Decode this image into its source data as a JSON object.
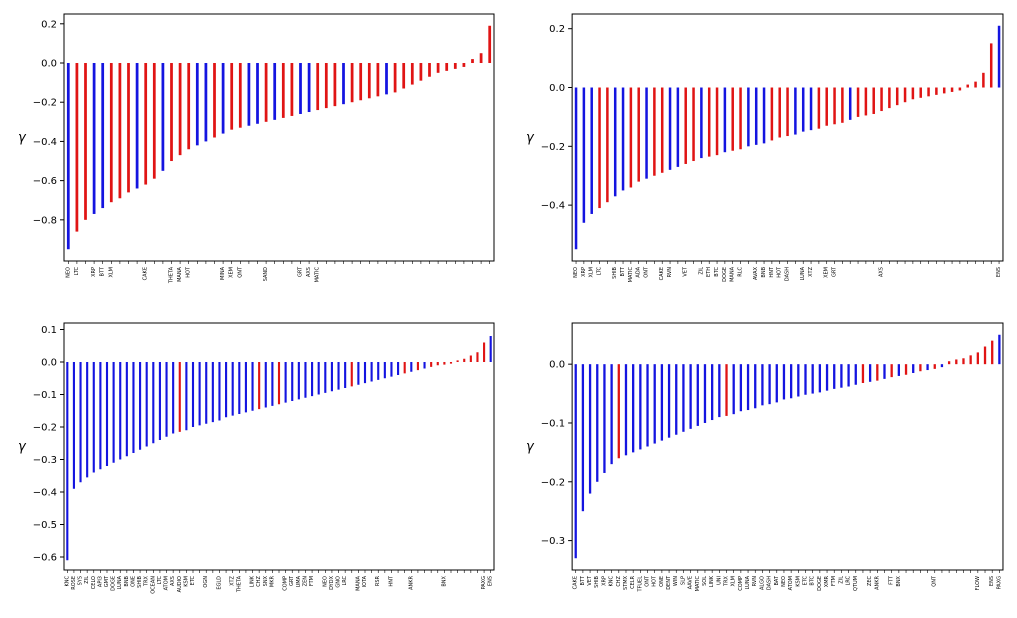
{
  "figure": {
    "background": "#ffffff"
  },
  "colors": {
    "blue": "#1414e0",
    "red": "#e01414",
    "axis": "#000000",
    "text": "#000000"
  },
  "ylabel": "γ",
  "chart_data": [
    {
      "type": "bar",
      "position": "top-left",
      "title": "",
      "xlabel": "",
      "ylabel": "γ",
      "ylim": [
        -1.01,
        0.25
      ],
      "yticks": [
        0.2,
        0.0,
        -0.2,
        -0.4,
        -0.6,
        -0.8
      ],
      "grid": false,
      "legend": false,
      "labels": [
        "NEO",
        "LTC",
        "",
        "XRP",
        "BTT",
        "XLM",
        "",
        "",
        "",
        "CAKE",
        "",
        "",
        "THETA",
        "MANA",
        "HOT",
        "",
        "",
        "",
        "MINA",
        "XEM",
        "QNT",
        "",
        "",
        "SAND",
        "",
        "",
        "",
        "GRT",
        "AXS",
        "MATIC",
        "",
        "",
        "",
        "",
        "",
        "",
        "",
        "",
        "",
        "",
        "",
        "",
        "",
        "",
        "",
        "",
        "",
        "",
        "",
        ""
      ],
      "values": [
        -0.95,
        -0.86,
        -0.8,
        -0.77,
        -0.74,
        -0.71,
        -0.69,
        -0.66,
        -0.64,
        -0.62,
        -0.59,
        -0.55,
        -0.5,
        -0.47,
        -0.44,
        -0.42,
        -0.4,
        -0.38,
        -0.36,
        -0.34,
        -0.33,
        -0.32,
        -0.31,
        -0.3,
        -0.29,
        -0.28,
        -0.27,
        -0.26,
        -0.25,
        -0.24,
        -0.23,
        -0.22,
        -0.21,
        -0.2,
        -0.19,
        -0.18,
        -0.17,
        -0.16,
        -0.15,
        -0.13,
        -0.11,
        -0.09,
        -0.07,
        -0.05,
        -0.04,
        -0.03,
        -0.02,
        0.02,
        0.05,
        0.19
      ],
      "colors": [
        "b",
        "r",
        "r",
        "b",
        "b",
        "r",
        "r",
        "r",
        "b",
        "r",
        "r",
        "b",
        "r",
        "r",
        "r",
        "b",
        "b",
        "r",
        "b",
        "r",
        "r",
        "b",
        "b",
        "r",
        "b",
        "r",
        "r",
        "b",
        "b",
        "r",
        "r",
        "r",
        "b",
        "r",
        "r",
        "r",
        "r",
        "b",
        "r",
        "r",
        "r",
        "r",
        "r",
        "r",
        "r",
        "r",
        "r",
        "r",
        "r",
        "r"
      ]
    },
    {
      "type": "bar",
      "position": "top-right",
      "title": "",
      "xlabel": "",
      "ylabel": "γ",
      "ylim": [
        -0.59,
        0.25
      ],
      "yticks": [
        0.2,
        0.0,
        -0.2,
        -0.4
      ],
      "grid": false,
      "legend": false,
      "labels": [
        "NEO",
        "XRP",
        "XLM",
        "LTC",
        "",
        "SHIB",
        "BTT",
        "MATIC",
        "ADA",
        "ONT",
        "",
        "CAKE",
        "RVN",
        "",
        "VET",
        "",
        "ZIL",
        "ETH",
        "BTC",
        "DOGE",
        "MANA",
        "RLC",
        "",
        "AVAX",
        "BNB",
        "HNT",
        "HOT",
        "DASH",
        "",
        "LUNA",
        "XTZ",
        "",
        "XEM",
        "GRT",
        "",
        "",
        "",
        "",
        "",
        "AXS",
        "",
        "",
        "",
        "",
        "",
        "",
        "",
        "",
        "",
        "",
        "",
        "",
        "",
        "",
        "ENS"
      ],
      "values": [
        -0.55,
        -0.46,
        -0.43,
        -0.41,
        -0.39,
        -0.37,
        -0.35,
        -0.34,
        -0.32,
        -0.31,
        -0.3,
        -0.29,
        -0.28,
        -0.27,
        -0.26,
        -0.25,
        -0.24,
        -0.235,
        -0.23,
        -0.22,
        -0.215,
        -0.21,
        -0.2,
        -0.195,
        -0.19,
        -0.18,
        -0.17,
        -0.165,
        -0.16,
        -0.15,
        -0.145,
        -0.14,
        -0.13,
        -0.125,
        -0.12,
        -0.11,
        -0.1,
        -0.095,
        -0.09,
        -0.08,
        -0.07,
        -0.06,
        -0.05,
        -0.04,
        -0.035,
        -0.03,
        -0.025,
        -0.02,
        -0.015,
        -0.01,
        0.01,
        0.02,
        0.05,
        0.15,
        0.21
      ],
      "colors": [
        "b",
        "b",
        "b",
        "r",
        "r",
        "b",
        "b",
        "r",
        "r",
        "b",
        "r",
        "r",
        "b",
        "b",
        "r",
        "r",
        "b",
        "r",
        "r",
        "b",
        "r",
        "r",
        "b",
        "b",
        "b",
        "r",
        "r",
        "r",
        "b",
        "b",
        "b",
        "r",
        "r",
        "r",
        "r",
        "b",
        "r",
        "r",
        "r",
        "r",
        "r",
        "r",
        "r",
        "r",
        "r",
        "r",
        "r",
        "r",
        "r",
        "r",
        "r",
        "r",
        "r",
        "r",
        "b"
      ]
    },
    {
      "type": "bar",
      "position": "bottom-left",
      "title": "",
      "xlabel": "",
      "ylabel": "γ",
      "ylim": [
        -0.64,
        0.12
      ],
      "yticks": [
        0.1,
        0.0,
        -0.1,
        -0.2,
        -0.3,
        -0.4,
        -0.5,
        -0.6
      ],
      "grid": false,
      "legend": false,
      "labels": [
        "KNC",
        "ROSE",
        "SYS",
        "ZIL",
        "CELO",
        "API3",
        "GMT",
        "DOGE",
        "LUNA",
        "BNB",
        "ONE",
        "SHIB",
        "TRX",
        "OCEAN",
        "LTC",
        "ATOM",
        "AXS",
        "AUDIO",
        "KSM",
        "ETC",
        "",
        "OGN",
        "",
        "EGLD",
        "",
        "XTZ",
        "THETA",
        "",
        "LINK",
        "CHZ",
        "SNX",
        "MKR",
        "",
        "COMP",
        "GRT",
        "UMA",
        "ZEN",
        "FTM",
        "",
        "NEO",
        "DYDX",
        "GNO",
        "LRC",
        "",
        "MANA",
        "IOTA",
        "",
        "RSR",
        "",
        "HNT",
        "",
        "",
        "ANKR",
        "",
        "",
        "",
        "",
        "BNX",
        "",
        "",
        "",
        "",
        "",
        "PAXG",
        "ENS"
      ],
      "values": [
        -0.61,
        -0.39,
        -0.37,
        -0.355,
        -0.34,
        -0.33,
        -0.32,
        -0.31,
        -0.3,
        -0.29,
        -0.28,
        -0.27,
        -0.26,
        -0.25,
        -0.24,
        -0.23,
        -0.22,
        -0.215,
        -0.21,
        -0.2,
        -0.195,
        -0.19,
        -0.185,
        -0.18,
        -0.17,
        -0.165,
        -0.16,
        -0.155,
        -0.15,
        -0.145,
        -0.14,
        -0.135,
        -0.13,
        -0.125,
        -0.12,
        -0.115,
        -0.11,
        -0.105,
        -0.1,
        -0.095,
        -0.09,
        -0.085,
        -0.08,
        -0.075,
        -0.07,
        -0.065,
        -0.06,
        -0.055,
        -0.05,
        -0.045,
        -0.04,
        -0.035,
        -0.03,
        -0.025,
        -0.02,
        -0.015,
        -0.01,
        -0.008,
        -0.005,
        0.005,
        0.01,
        0.02,
        0.03,
        0.06,
        0.08
      ],
      "colors": [
        "b",
        "b",
        "b",
        "b",
        "b",
        "b",
        "b",
        "b",
        "b",
        "b",
        "b",
        "b",
        "b",
        "b",
        "b",
        "b",
        "b",
        "r",
        "b",
        "b",
        "b",
        "b",
        "b",
        "b",
        "b",
        "b",
        "b",
        "b",
        "b",
        "r",
        "b",
        "b",
        "r",
        "b",
        "b",
        "b",
        "b",
        "b",
        "b",
        "b",
        "b",
        "b",
        "b",
        "r",
        "b",
        "b",
        "b",
        "b",
        "b",
        "b",
        "b",
        "r",
        "b",
        "r",
        "b",
        "r",
        "r",
        "r",
        "r",
        "r",
        "r",
        "r",
        "r",
        "r",
        "b"
      ]
    },
    {
      "type": "bar",
      "position": "bottom-right",
      "title": "",
      "xlabel": "",
      "ylabel": "γ",
      "ylim": [
        -0.35,
        0.07
      ],
      "yticks": [
        0.0,
        -0.1,
        -0.2,
        -0.3
      ],
      "grid": false,
      "legend": false,
      "labels": [
        "CAKE",
        "BTT",
        "VET",
        "SHIB",
        "XRP",
        "KNC",
        "CHZ",
        "STMX",
        "CELR",
        "TFUEL",
        "ONT",
        "HOT",
        "ONE",
        "DENT",
        "WIN",
        "SLP",
        "AAVE",
        "MATIC",
        "SOL",
        "LINK",
        "UNI",
        "TRX",
        "XLM",
        "COMP",
        "LUNA",
        "RVN",
        "ALGO",
        "DASH",
        "BAT",
        "NEO",
        "ATOM",
        "KSM",
        "ETC",
        "BTC",
        "DOGE",
        "XMR",
        "FTM",
        "ZIL",
        "LRC",
        "QTUM",
        "",
        "ZEC",
        "ANKR",
        "",
        "FTT",
        "BNX",
        "",
        "",
        "",
        "",
        "QNT",
        "",
        "",
        "",
        "",
        "",
        "FLOW",
        "",
        "ENS",
        "PAXG"
      ],
      "values": [
        -0.33,
        -0.25,
        -0.22,
        -0.2,
        -0.185,
        -0.17,
        -0.16,
        -0.155,
        -0.15,
        -0.145,
        -0.14,
        -0.135,
        -0.13,
        -0.125,
        -0.12,
        -0.115,
        -0.11,
        -0.105,
        -0.1,
        -0.095,
        -0.09,
        -0.088,
        -0.085,
        -0.08,
        -0.078,
        -0.075,
        -0.07,
        -0.068,
        -0.065,
        -0.06,
        -0.058,
        -0.055,
        -0.052,
        -0.05,
        -0.048,
        -0.045,
        -0.042,
        -0.04,
        -0.038,
        -0.035,
        -0.032,
        -0.03,
        -0.028,
        -0.025,
        -0.022,
        -0.02,
        -0.018,
        -0.015,
        -0.012,
        -0.01,
        -0.008,
        -0.005,
        0.005,
        0.008,
        0.01,
        0.015,
        0.02,
        0.03,
        0.04,
        0.05
      ],
      "colors": [
        "b",
        "b",
        "b",
        "b",
        "b",
        "b",
        "r",
        "b",
        "b",
        "b",
        "b",
        "b",
        "b",
        "b",
        "b",
        "b",
        "b",
        "b",
        "b",
        "b",
        "b",
        "r",
        "b",
        "b",
        "b",
        "b",
        "b",
        "b",
        "b",
        "b",
        "b",
        "b",
        "b",
        "b",
        "b",
        "b",
        "b",
        "b",
        "b",
        "b",
        "r",
        "b",
        "r",
        "b",
        "r",
        "b",
        "r",
        "b",
        "r",
        "b",
        "r",
        "b",
        "r",
        "r",
        "r",
        "r",
        "r",
        "r",
        "r",
        "b"
      ]
    }
  ]
}
